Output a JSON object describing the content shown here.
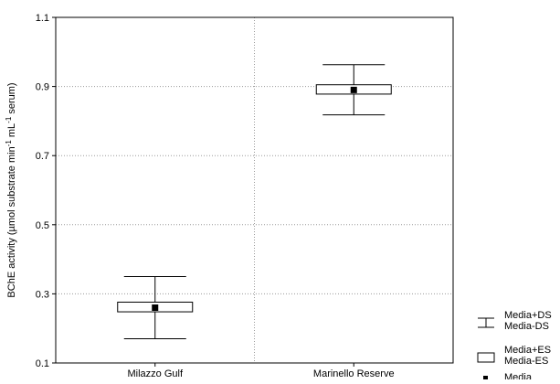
{
  "chart_data": {
    "type": "box",
    "ylabel_parts": [
      "BChE activity (µmol substrate min",
      "-1",
      " mL",
      "-1",
      " serum)"
    ],
    "ylim": [
      0.1,
      1.1
    ],
    "yticks": [
      0.1,
      0.3,
      0.5,
      0.7,
      0.9,
      1.1
    ],
    "ytick_labels": [
      "0.1",
      "0.3",
      "0.5",
      "0.7",
      "0.9",
      "1.1"
    ],
    "categories": [
      "Milazzo Gulf",
      "Marinello Reserve"
    ],
    "series": [
      {
        "category": "Milazzo Gulf",
        "mean": 0.26,
        "se_low": 0.248,
        "se_high": 0.276,
        "sd_low": 0.17,
        "sd_high": 0.35
      },
      {
        "category": "Marinello Reserve",
        "mean": 0.89,
        "se_low": 0.878,
        "se_high": 0.905,
        "sd_low": 0.818,
        "sd_high": 0.963
      }
    ],
    "grid": true,
    "legend_position": "bottom-right",
    "legend": [
      {
        "symbol": "whisker",
        "lines": [
          "Media+DS",
          "Media-DS"
        ]
      },
      {
        "symbol": "box",
        "lines": [
          "Media+ES",
          "Media-ES"
        ]
      },
      {
        "symbol": "point",
        "lines": [
          "Media"
        ]
      }
    ]
  }
}
